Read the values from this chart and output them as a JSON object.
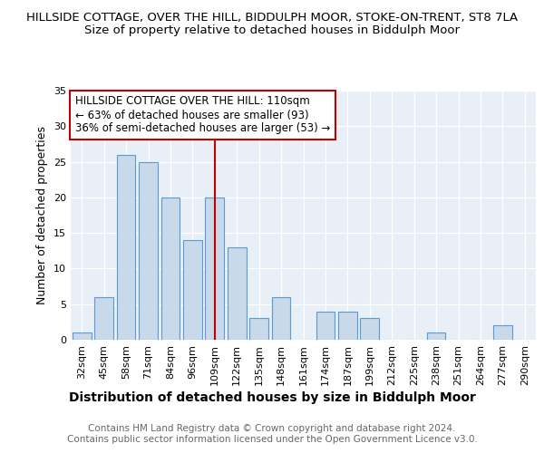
{
  "title": "HILLSIDE COTTAGE, OVER THE HILL, BIDDULPH MOOR, STOKE-ON-TRENT, ST8 7LA",
  "subtitle": "Size of property relative to detached houses in Biddulph Moor",
  "xlabel": "Distribution of detached houses by size in Biddulph Moor",
  "ylabel": "Number of detached properties",
  "categories": [
    "32sqm",
    "45sqm",
    "58sqm",
    "71sqm",
    "84sqm",
    "96sqm",
    "109sqm",
    "122sqm",
    "135sqm",
    "148sqm",
    "161sqm",
    "174sqm",
    "187sqm",
    "199sqm",
    "212sqm",
    "225sqm",
    "238sqm",
    "251sqm",
    "264sqm",
    "277sqm",
    "290sqm"
  ],
  "values": [
    1,
    6,
    26,
    25,
    20,
    14,
    20,
    13,
    3,
    6,
    0,
    4,
    4,
    3,
    0,
    0,
    1,
    0,
    0,
    2,
    0
  ],
  "bar_color": "#c8d9ea",
  "bar_edge_color": "#5b9bd5",
  "vline_x_index": 6,
  "vline_color": "#c00000",
  "annotation_text": "HILLSIDE COTTAGE OVER THE HILL: 110sqm\n← 63% of detached houses are smaller (93)\n36% of semi-detached houses are larger (53) →",
  "annotation_box_color": "#ffffff",
  "annotation_box_edge_color": "#c00000",
  "ylim": [
    0,
    35
  ],
  "yticks": [
    0,
    5,
    10,
    15,
    20,
    25,
    30,
    35
  ],
  "background_color": "#e8eff6",
  "footer_text": "Contains HM Land Registry data © Crown copyright and database right 2024.\nContains public sector information licensed under the Open Government Licence v3.0.",
  "title_fontsize": 9.5,
  "subtitle_fontsize": 9.5,
  "xlabel_fontsize": 10,
  "ylabel_fontsize": 9,
  "tick_fontsize": 8,
  "annotation_fontsize": 8.5,
  "footer_fontsize": 7.5
}
